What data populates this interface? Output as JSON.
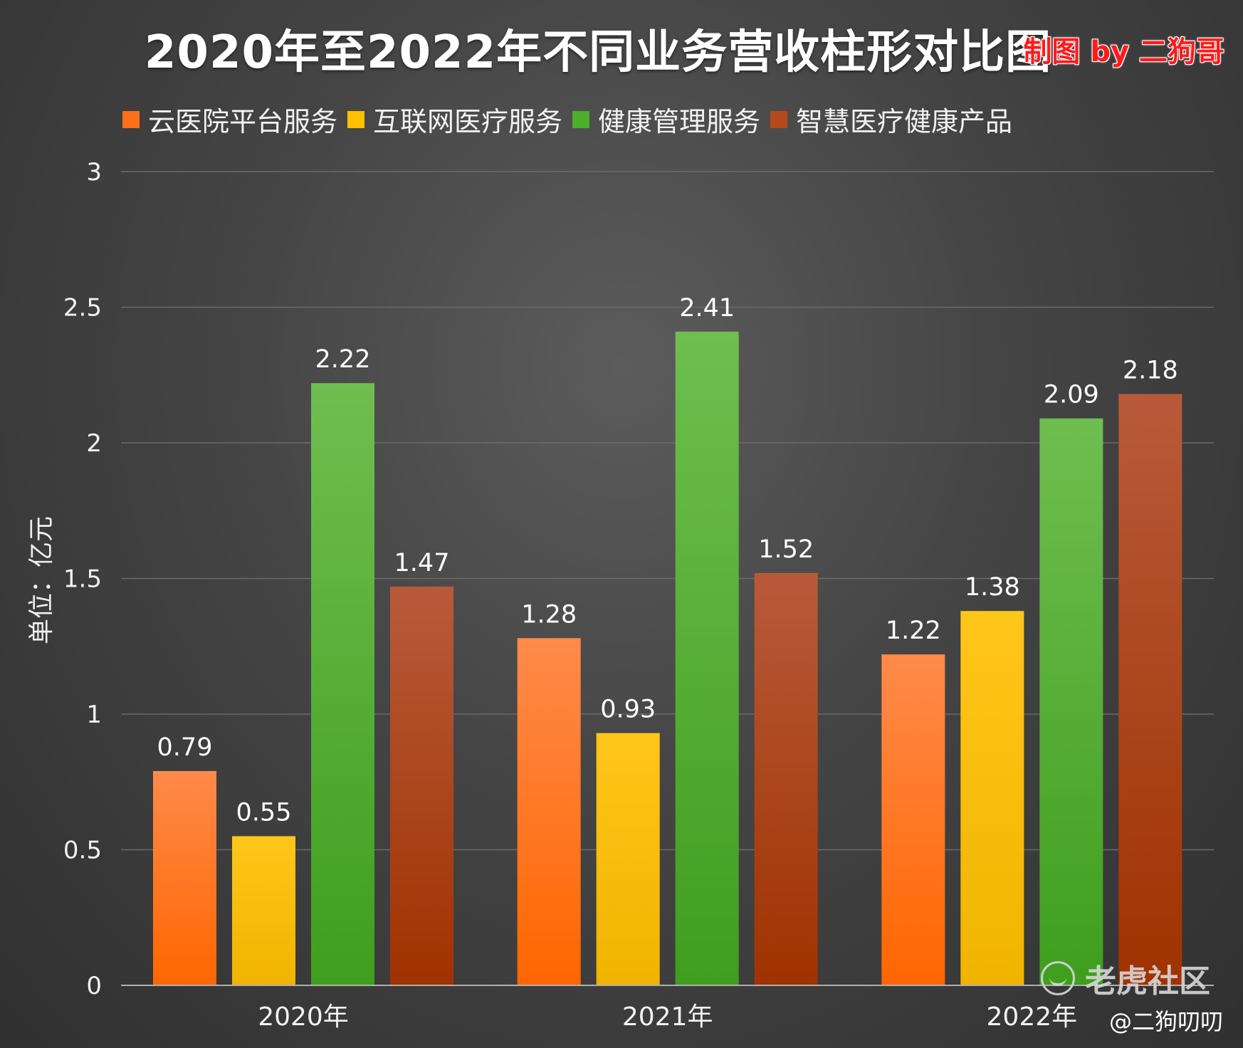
{
  "title": "2020年至2022年不同业务营收柱形对比图",
  "credit": "制图 by 二狗哥",
  "watermark": "老虎社区",
  "handle": "@二狗叨叨",
  "chart_data": {
    "type": "bar",
    "title": "2020年至2022年不同业务营收柱形对比图",
    "ylabel": "单位：亿元",
    "xlabel": "",
    "ylim": [
      0,
      3
    ],
    "yticks": [
      0,
      0.5,
      1,
      1.5,
      2,
      2.5,
      3
    ],
    "ytick_labels": [
      "0",
      "0.5",
      "1",
      "1.5",
      "2",
      "2.5",
      "3"
    ],
    "categories": [
      "2020年",
      "2021年",
      "2022年"
    ],
    "legend_position": "top-left",
    "grid": true,
    "series": [
      {
        "name": "云医院平台服务",
        "values": [
          0.79,
          1.28,
          1.22
        ],
        "labels": [
          "0.79",
          "1.28",
          "1.22"
        ],
        "color": "#ff6f1a",
        "color_top": "#ff8a4a",
        "color_bottom": "#ff6600"
      },
      {
        "name": "互联网医疗服务",
        "values": [
          0.55,
          0.93,
          1.38
        ],
        "labels": [
          "0.55",
          "0.93",
          "1.38"
        ],
        "color": "#ffc000",
        "color_top": "#ffc61a",
        "color_bottom": "#f0b400"
      },
      {
        "name": "健康管理服务",
        "values": [
          2.22,
          2.41,
          2.09
        ],
        "labels": [
          "2.22",
          "2.41",
          "2.09"
        ],
        "color": "#4caf2a",
        "color_top": "#6fbe50",
        "color_bottom": "#3f9e1e"
      },
      {
        "name": "智慧医疗健康产品",
        "values": [
          1.47,
          1.52,
          2.18
        ],
        "labels": [
          "1.47",
          "1.52",
          "2.18"
        ],
        "color": "#b44a1c",
        "color_top": "#b85a3a",
        "color_bottom": "#a03200"
      }
    ]
  }
}
